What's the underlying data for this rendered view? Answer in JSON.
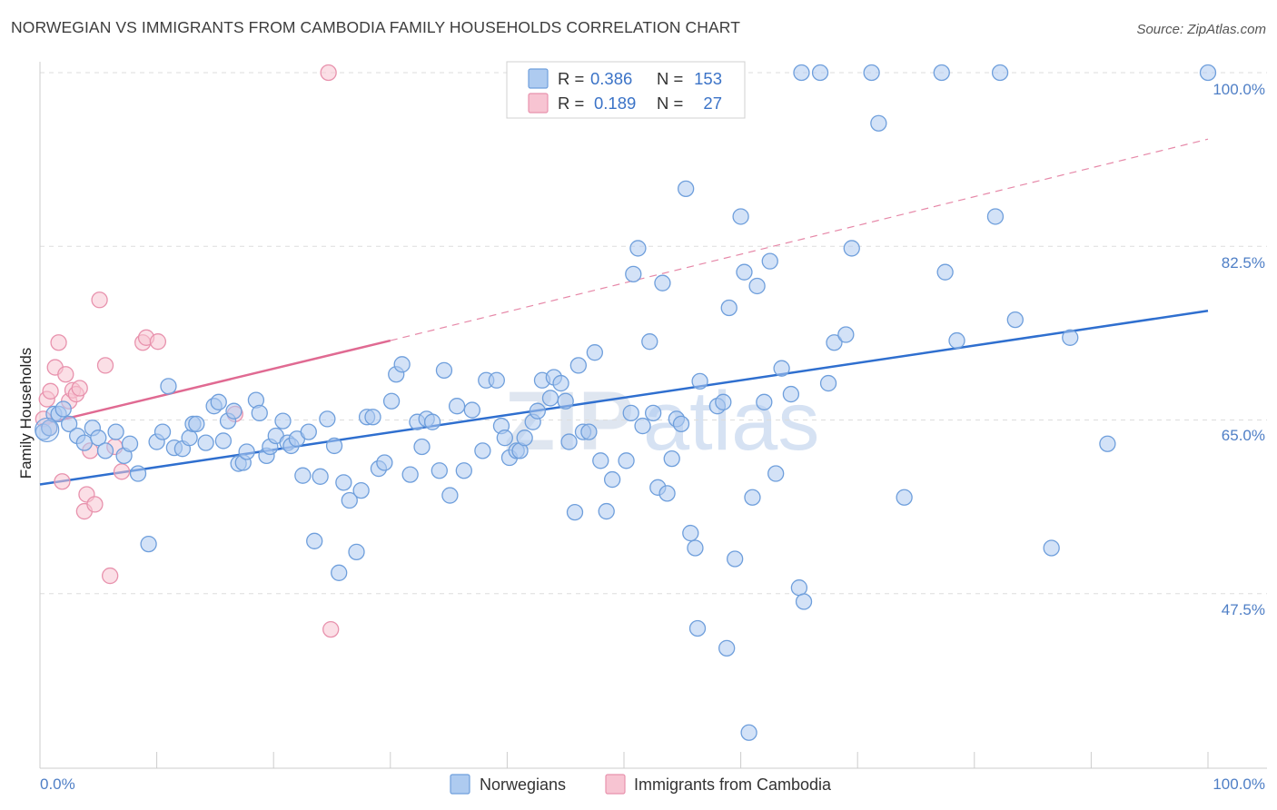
{
  "title": "NORWEGIAN VS IMMIGRANTS FROM CAMBODIA FAMILY HOUSEHOLDS CORRELATION CHART",
  "source": "Source: ZipAtlas.com",
  "watermark": {
    "part1": "ZIP",
    "part2": "atlas"
  },
  "colors": {
    "blue_fill": "#aecbf0",
    "blue_stroke": "#6f9fdc",
    "blue_line": "#2f6fcf",
    "pink_fill": "#f7c4d2",
    "pink_stroke": "#e892ad",
    "pink_line": "#e06a92",
    "grid": "#dddddd",
    "axis_tick_text": "#4f7fc6"
  },
  "legend": {
    "r_label": "R =",
    "n_label": "N =",
    "rows": [
      {
        "name": "Norwegians",
        "r": "0.386",
        "n": "153"
      },
      {
        "name": "Immigrants from Cambodia",
        "r": "0.189",
        "n": "27"
      }
    ]
  },
  "chart_data": {
    "type": "scatter",
    "xlabel": "",
    "ylabel": "Family Households",
    "xlim": [
      0,
      100
    ],
    "ylim": [
      30,
      100
    ],
    "x_tick_labels": [
      "0.0%",
      "100.0%"
    ],
    "y_ticks": [
      47.5,
      65.0,
      82.5,
      100.0
    ],
    "y_tick_labels": [
      "47.5%",
      "65.0%",
      "82.5%",
      "100.0%"
    ],
    "series": [
      {
        "name": "Norwegians",
        "trend": {
          "x0": 0,
          "y0": 58.5,
          "x1": 100,
          "y1": 76.0,
          "style": "solid"
        },
        "points": [
          [
            0.3,
            63.8
          ],
          [
            0.8,
            64.2
          ],
          [
            1.2,
            65.6
          ],
          [
            1.6,
            65.6
          ],
          [
            2.0,
            66.1
          ],
          [
            2.5,
            64.6
          ],
          [
            3.2,
            63.4
          ],
          [
            3.8,
            62.7
          ],
          [
            4.5,
            64.2
          ],
          [
            5.0,
            63.2
          ],
          [
            5.6,
            61.9
          ],
          [
            6.5,
            63.8
          ],
          [
            7.2,
            61.4
          ],
          [
            7.7,
            62.6
          ],
          [
            8.4,
            59.6
          ],
          [
            9.3,
            52.5
          ],
          [
            10.0,
            62.8
          ],
          [
            10.5,
            63.8
          ],
          [
            11.0,
            68.4
          ],
          [
            11.5,
            62.2
          ],
          [
            12.2,
            62.1
          ],
          [
            12.8,
            63.2
          ],
          [
            13.1,
            64.6
          ],
          [
            13.4,
            64.6
          ],
          [
            14.2,
            62.7
          ],
          [
            14.9,
            66.4
          ],
          [
            15.3,
            66.8
          ],
          [
            15.7,
            62.9
          ],
          [
            16.1,
            64.9
          ],
          [
            16.6,
            65.9
          ],
          [
            17.0,
            60.6
          ],
          [
            17.4,
            60.7
          ],
          [
            17.7,
            61.8
          ],
          [
            18.5,
            67.0
          ],
          [
            18.8,
            65.7
          ],
          [
            19.4,
            61.4
          ],
          [
            19.7,
            62.3
          ],
          [
            20.2,
            63.4
          ],
          [
            20.8,
            64.9
          ],
          [
            21.2,
            62.7
          ],
          [
            21.5,
            62.4
          ],
          [
            22.0,
            63.1
          ],
          [
            22.5,
            59.4
          ],
          [
            23.0,
            63.8
          ],
          [
            23.5,
            52.8
          ],
          [
            24.0,
            59.3
          ],
          [
            24.6,
            65.1
          ],
          [
            25.2,
            62.4
          ],
          [
            25.6,
            49.6
          ],
          [
            26.0,
            58.7
          ],
          [
            26.5,
            56.9
          ],
          [
            27.1,
            51.7
          ],
          [
            27.5,
            57.9
          ],
          [
            28.0,
            65.3
          ],
          [
            28.5,
            65.3
          ],
          [
            29.0,
            60.1
          ],
          [
            29.5,
            60.7
          ],
          [
            30.1,
            66.9
          ],
          [
            30.5,
            69.6
          ],
          [
            31.0,
            70.6
          ],
          [
            31.7,
            59.5
          ],
          [
            32.3,
            64.8
          ],
          [
            32.7,
            62.3
          ],
          [
            33.1,
            65.1
          ],
          [
            33.6,
            64.8
          ],
          [
            34.2,
            59.9
          ],
          [
            34.6,
            70.0
          ],
          [
            35.1,
            57.4
          ],
          [
            35.7,
            66.4
          ],
          [
            36.3,
            59.9
          ],
          [
            37.0,
            66.0
          ],
          [
            37.9,
            61.9
          ],
          [
            38.2,
            69.0
          ],
          [
            39.1,
            69.0
          ],
          [
            39.5,
            64.4
          ],
          [
            39.8,
            63.2
          ],
          [
            40.2,
            61.2
          ],
          [
            40.8,
            61.9
          ],
          [
            41.1,
            61.9
          ],
          [
            41.5,
            63.2
          ],
          [
            42.2,
            64.8
          ],
          [
            42.6,
            65.9
          ],
          [
            43.0,
            69.0
          ],
          [
            43.7,
            67.2
          ],
          [
            44.0,
            69.3
          ],
          [
            44.6,
            68.7
          ],
          [
            45.0,
            66.9
          ],
          [
            45.3,
            62.8
          ],
          [
            45.8,
            55.7
          ],
          [
            46.1,
            70.5
          ],
          [
            46.5,
            63.8
          ],
          [
            47.0,
            63.8
          ],
          [
            47.5,
            71.8
          ],
          [
            48.0,
            60.9
          ],
          [
            48.5,
            55.8
          ],
          [
            49.0,
            59.0
          ],
          [
            50.2,
            60.9
          ],
          [
            50.6,
            65.7
          ],
          [
            50.8,
            79.7
          ],
          [
            51.2,
            82.3
          ],
          [
            51.6,
            64.4
          ],
          [
            52.2,
            72.9
          ],
          [
            52.5,
            65.7
          ],
          [
            52.9,
            58.2
          ],
          [
            53.3,
            78.8
          ],
          [
            53.7,
            57.6
          ],
          [
            54.1,
            61.1
          ],
          [
            54.5,
            65.1
          ],
          [
            54.9,
            64.6
          ],
          [
            55.3,
            88.3
          ],
          [
            55.7,
            53.6
          ],
          [
            56.1,
            52.1
          ],
          [
            56.5,
            68.9
          ],
          [
            58.0,
            66.4
          ],
          [
            58.5,
            66.8
          ],
          [
            59.0,
            76.3
          ],
          [
            59.5,
            51.0
          ],
          [
            60.0,
            85.5
          ],
          [
            60.3,
            79.9
          ],
          [
            61.0,
            57.2
          ],
          [
            61.4,
            78.5
          ],
          [
            62.0,
            66.8
          ],
          [
            62.5,
            81.0
          ],
          [
            63.0,
            59.6
          ],
          [
            63.5,
            70.2
          ],
          [
            64.3,
            67.6
          ],
          [
            65.0,
            48.1
          ],
          [
            65.4,
            46.7
          ],
          [
            65.2,
            100.0
          ],
          [
            66.8,
            100.0
          ],
          [
            67.5,
            68.7
          ],
          [
            68.0,
            72.8
          ],
          [
            69.0,
            73.6
          ],
          [
            69.5,
            82.3
          ],
          [
            71.2,
            100.0
          ],
          [
            71.8,
            94.9
          ],
          [
            74.0,
            57.2
          ],
          [
            77.2,
            100.0
          ],
          [
            77.5,
            79.9
          ],
          [
            78.5,
            73.0
          ],
          [
            81.8,
            85.5
          ],
          [
            82.2,
            100.0
          ],
          [
            83.5,
            75.1
          ],
          [
            86.6,
            52.1
          ],
          [
            88.2,
            73.3
          ],
          [
            91.4,
            62.6
          ],
          [
            100.0,
            100.0
          ],
          [
            56.3,
            44.0
          ],
          [
            60.7,
            33.5
          ],
          [
            58.8,
            42.0
          ]
        ]
      },
      {
        "name": "Immigrants from Cambodia",
        "trend": {
          "x0": 0,
          "y0": 64.5,
          "x1": 30,
          "y1": 73.0,
          "x_end": 100,
          "y_end": 93.3,
          "style": "solid-then-dashed"
        },
        "points": [
          [
            0.3,
            65.1
          ],
          [
            0.6,
            67.1
          ],
          [
            0.9,
            67.9
          ],
          [
            1.3,
            70.3
          ],
          [
            1.6,
            72.8
          ],
          [
            1.9,
            58.8
          ],
          [
            2.2,
            69.6
          ],
          [
            2.5,
            66.9
          ],
          [
            2.8,
            68.0
          ],
          [
            3.1,
            67.6
          ],
          [
            3.4,
            68.2
          ],
          [
            3.8,
            55.8
          ],
          [
            4.0,
            57.5
          ],
          [
            4.3,
            61.9
          ],
          [
            4.7,
            56.5
          ],
          [
            5.1,
            77.1
          ],
          [
            5.6,
            70.5
          ],
          [
            6.0,
            49.3
          ],
          [
            6.4,
            62.3
          ],
          [
            7.0,
            59.8
          ],
          [
            8.8,
            72.8
          ],
          [
            9.1,
            73.3
          ],
          [
            10.1,
            72.9
          ],
          [
            16.7,
            65.6
          ],
          [
            24.7,
            100.0
          ],
          [
            24.9,
            43.9
          ],
          [
            0.8,
            64.2
          ]
        ]
      }
    ]
  }
}
